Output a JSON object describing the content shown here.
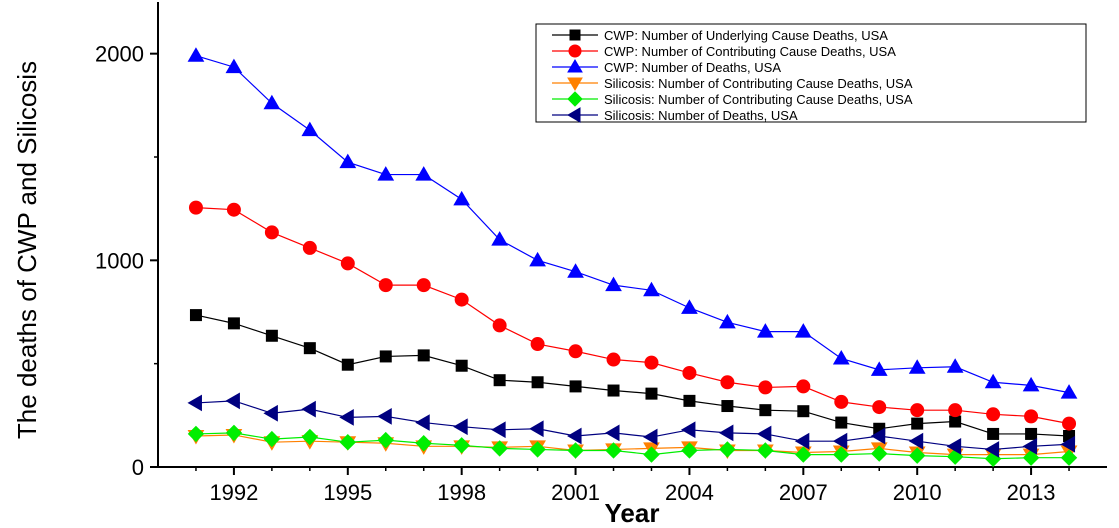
{
  "chart_data": {
    "type": "line",
    "xlabel": "Year",
    "ylabel": "The deaths of CWP and Silicosis",
    "xlim": [
      1990,
      2015
    ],
    "ylim": [
      0,
      2250
    ],
    "x_ticks": [
      1992,
      1995,
      1998,
      2001,
      2004,
      2007,
      2010,
      2013
    ],
    "y_ticks": [
      0,
      1000,
      2000
    ],
    "legend_position": "top-right",
    "x": [
      1991,
      1992,
      1993,
      1994,
      1995,
      1996,
      1997,
      1998,
      1999,
      2000,
      2001,
      2002,
      2003,
      2004,
      2005,
      2006,
      2007,
      2008,
      2009,
      2010,
      2011,
      2012,
      2013,
      2014
    ],
    "series": [
      {
        "name": "CWP: Number of Underlying Cause Deaths, USA",
        "color": "#000000",
        "marker": "square",
        "values": [
          735,
          695,
          635,
          575,
          495,
          535,
          540,
          490,
          420,
          410,
          390,
          370,
          355,
          320,
          295,
          275,
          270,
          215,
          185,
          210,
          220,
          160,
          160,
          150
        ]
      },
      {
        "name": "CWP: Number of Contributing Cause Deaths, USA",
        "color": "#ff0000",
        "marker": "circle",
        "values": [
          1255,
          1245,
          1135,
          1060,
          985,
          880,
          880,
          810,
          685,
          595,
          560,
          520,
          505,
          455,
          410,
          385,
          390,
          315,
          290,
          275,
          275,
          255,
          245,
          210
        ]
      },
      {
        "name": "CWP: Number of Deaths, USA",
        "color": "#0000ff",
        "marker": "triangle-up",
        "values": [
          1990,
          1935,
          1760,
          1630,
          1475,
          1415,
          1415,
          1295,
          1100,
          1000,
          945,
          880,
          855,
          770,
          700,
          655,
          655,
          525,
          470,
          480,
          485,
          410,
          395,
          360
        ]
      },
      {
        "name": "Silicosis: Number of Contributing Cause Deaths, USA",
        "color": "#ff8000",
        "marker": "triangle-down",
        "values": [
          150,
          155,
          120,
          125,
          120,
          115,
          100,
          100,
          95,
          100,
          80,
          85,
          90,
          95,
          80,
          80,
          70,
          75,
          90,
          70,
          60,
          60,
          60,
          75
        ]
      },
      {
        "name": "Silicosis: Number of Contributing Cause Deaths, USA",
        "color": "#00ee00",
        "marker": "diamond",
        "values": [
          160,
          165,
          135,
          145,
          120,
          130,
          115,
          105,
          90,
          85,
          80,
          80,
          60,
          80,
          85,
          80,
          60,
          60,
          65,
          55,
          50,
          40,
          45,
          45
        ]
      },
      {
        "name": "Silicosis: Number of Deaths, USA",
        "color": "#000080",
        "marker": "triangle-left",
        "values": [
          310,
          320,
          260,
          280,
          240,
          245,
          215,
          195,
          180,
          185,
          150,
          165,
          145,
          180,
          165,
          160,
          125,
          125,
          150,
          125,
          100,
          85,
          100,
          110
        ]
      }
    ]
  }
}
